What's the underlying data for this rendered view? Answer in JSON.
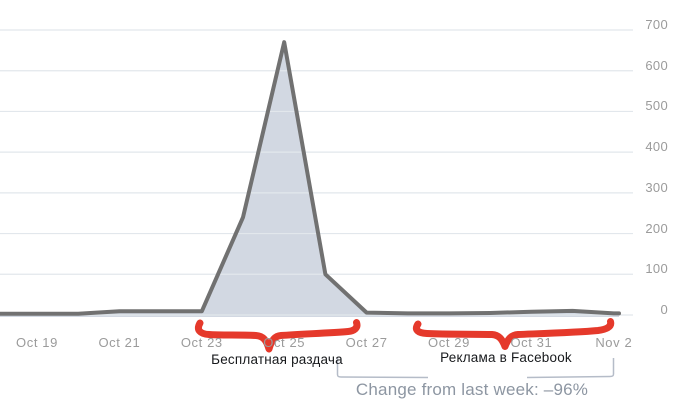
{
  "chart_data": {
    "type": "area",
    "title": "",
    "xlabel": "",
    "ylabel": "",
    "x": [
      "Oct 19",
      "Oct 20",
      "Oct 21",
      "Oct 22",
      "Oct 23",
      "Oct 24",
      "Oct 25",
      "Oct 26",
      "Oct 27",
      "Oct 28",
      "Oct 29",
      "Oct 30",
      "Oct 31",
      "Nov 1",
      "Nov 2"
    ],
    "values": [
      3,
      3,
      9,
      9,
      9,
      240,
      670,
      100,
      6,
      4,
      4,
      5,
      8,
      10,
      4
    ],
    "x_tick_labels": [
      "Oct 19",
      "Oct 21",
      "Oct 23",
      "Oct 25",
      "Oct 27",
      "Oct 29",
      "Oct 31",
      "Nov 2"
    ],
    "y_ticks": [
      0,
      100,
      200,
      300,
      400,
      500,
      600,
      700
    ],
    "y_tick_labels": [
      "700",
      "600",
      "500",
      "400",
      "300",
      "200",
      "100",
      "0"
    ],
    "ylim": [
      0,
      700
    ],
    "y_axis_side": "right",
    "grid": "horizontal",
    "legend": "none",
    "line_color": "#717171",
    "fill_color": "#d2d8e2",
    "grid_color": "#e2e7ec"
  },
  "annotations": {
    "free_giveaway_label": "Бесплатная раздача",
    "facebook_ads_label": "Реклама в Facebook",
    "change_summary": "Change from last week: –96%",
    "marker_color": "#e5392b",
    "bracket_color": "#b5bcc8"
  }
}
